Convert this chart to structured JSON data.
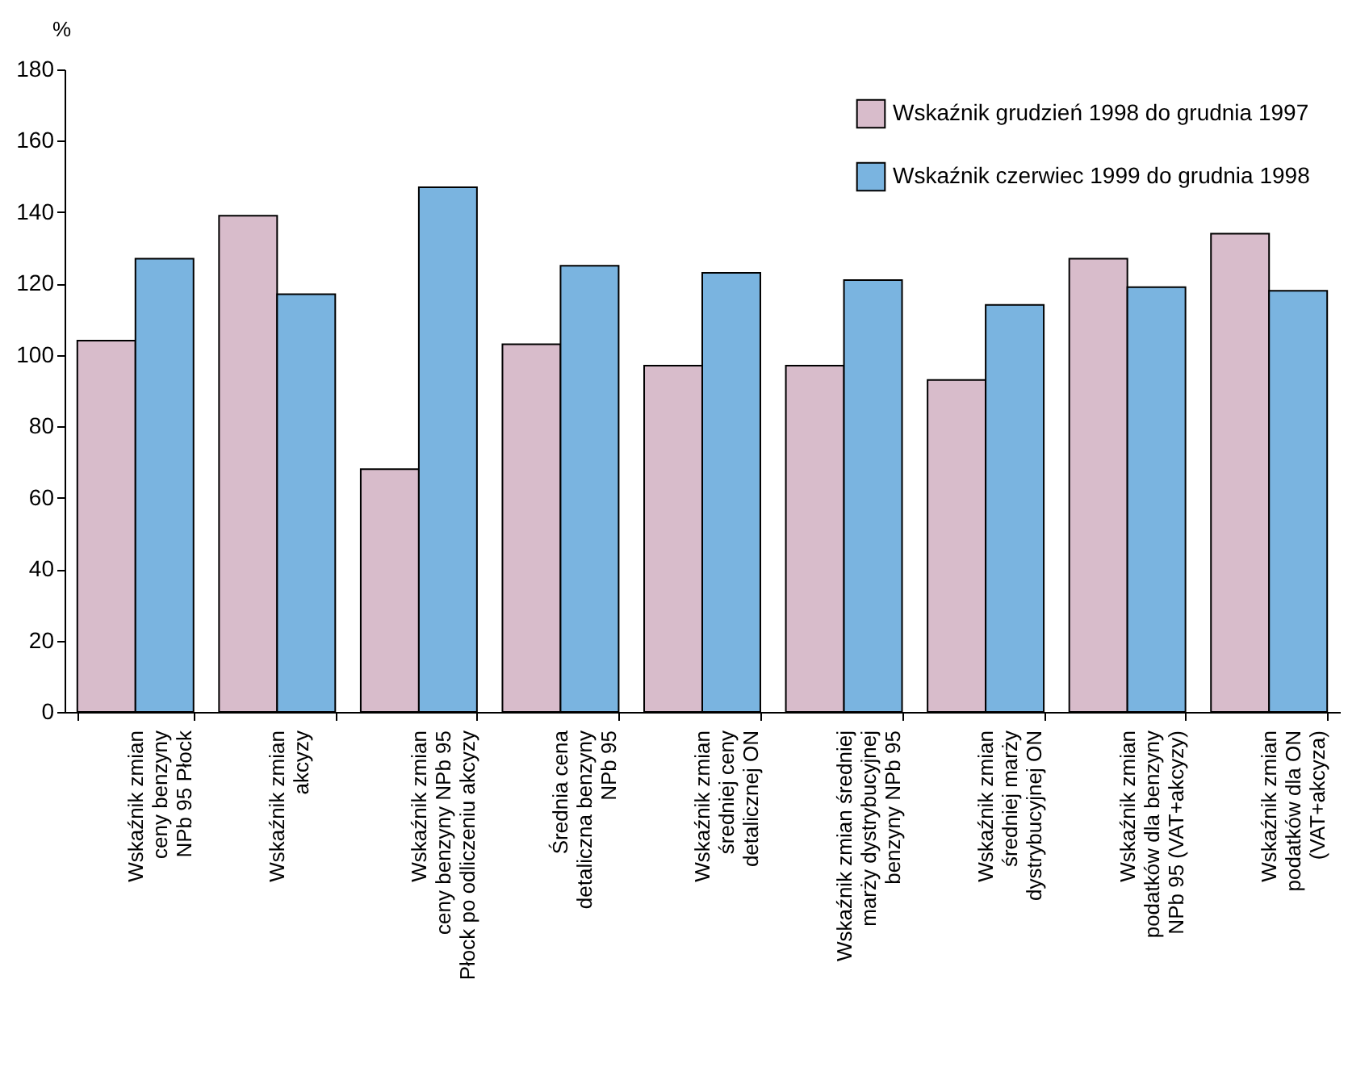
{
  "chart_data": {
    "type": "bar",
    "ylabel": "%",
    "categories": [
      "Wskaźnik zmian\nceny benzyny\nNPb 95 Płock",
      "Wskaźnik zmian\nakcyzy",
      "Wskaźnik zmian\nceny benzyny NPb 95\nPłock po odliczeniu akcyzy",
      "Średnia cena\ndetaliczna benzyny\nNPb 95",
      "Wskaźnik zmian\nśredniej ceny\ndetalicznej ON",
      "Wskaźnik zmian średniej\nmarży dystrybucyjnej\nbenzyny NPb 95",
      "Wskaźnik zmian\nśredniej marży\ndystrybucyjnej ON",
      "Wskaźnik zmian\npodatków dla benzyny\nNPb 95 (VAT+akcyzy)",
      "Wskaźnik zmian\npodatków dla ON\n(VAT+akcyza)"
    ],
    "series": [
      {
        "name": "Wskaźnik grudzień 1998 do grudnia 1997",
        "color": "#d8bccb",
        "values": [
          104,
          139,
          68,
          103,
          97,
          97,
          93,
          127,
          134
        ]
      },
      {
        "name": "Wskaźnik czerwiec 1999 do grudnia 1998",
        "color": "#7ab4e0",
        "values": [
          127,
          117,
          147,
          125,
          123,
          121,
          114,
          119,
          118
        ]
      }
    ],
    "ylim": [
      0,
      180
    ],
    "yticks": [
      0,
      20,
      40,
      60,
      80,
      100,
      120,
      140,
      160,
      180
    ],
    "grid": false,
    "legend": "top right"
  }
}
